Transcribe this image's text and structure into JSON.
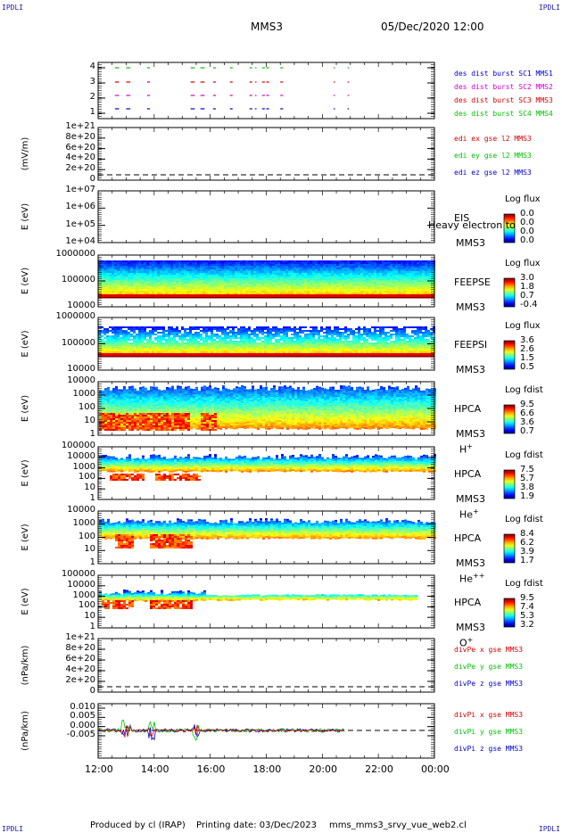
{
  "header": {
    "ipdli": "IPDLI",
    "spacecraft": "MMS3",
    "datetime": "05/Dec/2020 12:00"
  },
  "footer": {
    "produced": "Produced by cl (IRAP)",
    "printing": "Printing date: 03/Dec/2023",
    "script": "mms_mms3_srvy_vue_web2.cl"
  },
  "colors": {
    "blue": "#0000cc",
    "red": "#d40000",
    "green": "#00c000",
    "magenta": "#cc00cc"
  },
  "chart_data": {
    "type": "multi-panel-timeseries",
    "xaxis": {
      "ticks": [
        "12:00",
        "14:00",
        "16:00",
        "18:00",
        "20:00",
        "22:00",
        "00:00"
      ],
      "start": "12:00",
      "end": "00:00",
      "tick_interval_h": 2
    },
    "panels": [
      {
        "id": "burst",
        "type": "scatter",
        "yticks": [
          "4",
          "3",
          "2",
          "1"
        ],
        "ylim": [
          0.5,
          4.5
        ],
        "legend": [
          {
            "text": "des dist burst SC1 MMS1",
            "color": "#0000cc"
          },
          {
            "text": "des dist burst SC2 MMS2",
            "color": "#cc00cc"
          },
          {
            "text": "des dist burst SC3 MMS3",
            "color": "#d40000"
          },
          {
            "text": "des dist burst SC4 MMS4",
            "color": "#00c000"
          }
        ],
        "burst_intervals_h": [
          [
            0.6,
            0.75
          ],
          [
            1.0,
            1.15
          ],
          [
            1.75,
            1.85
          ],
          [
            3.3,
            3.45
          ],
          [
            3.65,
            3.8
          ],
          [
            4.1,
            4.2
          ],
          [
            4.7,
            4.8
          ],
          [
            5.4,
            5.5
          ],
          [
            5.6,
            5.65
          ],
          [
            5.85,
            5.95
          ],
          [
            6.0,
            6.1
          ],
          [
            6.5,
            6.6
          ],
          [
            8.4,
            8.45
          ],
          [
            8.9,
            8.95
          ]
        ]
      },
      {
        "id": "edi",
        "ylabel": "(mV/m)",
        "yticks": [
          "1e+21",
          "8e+20",
          "6e+20",
          "4e+20",
          "2e+20",
          "0"
        ],
        "legend": [
          {
            "text": "edi ex gse l2 MMS3",
            "color": "#d40000"
          },
          {
            "text": "edi ey gse l2 MMS3",
            "color": "#00c000"
          },
          {
            "text": "edi ez gse l2 MMS3",
            "color": "#0000cc"
          }
        ]
      },
      {
        "id": "eis",
        "ylabel": "E (eV)",
        "yticks": [
          "1e+07",
          "1e+06",
          "1e+05",
          "1e+04"
        ],
        "instrument": "EIS",
        "mms": "MMS3",
        "overlay": "Heavy electron to",
        "cb_title": "Log flux",
        "cb_values": [
          "0.0",
          "0.0",
          "0.0",
          "0.0"
        ]
      },
      {
        "id": "feepse",
        "ylabel": "E (eV)",
        "yticks": [
          "1000000",
          "100000",
          "10000"
        ],
        "instrument": "FEEPSE",
        "mms": "MMS3",
        "cb_title": "Log flux",
        "cb_values": [
          "3.0",
          "1.8",
          "0.7",
          "-0.4"
        ]
      },
      {
        "id": "feepsi",
        "ylabel": "E (eV)",
        "yticks": [
          "1000000",
          "100000",
          "10000"
        ],
        "instrument": "FEEPSI",
        "mms": "MMS3",
        "cb_title": "Log flux",
        "cb_values": [
          "3.6",
          "2.6",
          "1.5",
          "0.5"
        ]
      },
      {
        "id": "hpca_h",
        "ylabel": "E (eV)",
        "yticks": [
          "10000",
          "1000",
          "100",
          "10",
          "1"
        ],
        "instrument": "HPCA",
        "mms": "MMS3",
        "species": "H",
        "species_sup": "+",
        "cb_title": "Log fdist",
        "cb_values": [
          "9.5",
          "6.6",
          "3.6",
          "0.7"
        ]
      },
      {
        "id": "hpca_he",
        "ylabel": "E (eV)",
        "yticks": [
          "100000",
          "10000",
          "1000",
          "100",
          "10",
          "1"
        ],
        "instrument": "HPCA",
        "mms": "MMS3",
        "species": "He",
        "species_sup": "+",
        "cb_title": "Log fdist",
        "cb_values": [
          "7.5",
          "5.7",
          "3.8",
          "1.9"
        ]
      },
      {
        "id": "hpca_hepp",
        "ylabel": "E (eV)",
        "yticks": [
          "10000",
          "1000",
          "100",
          "10",
          "1"
        ],
        "instrument": "HPCA",
        "mms": "MMS3",
        "species": "He",
        "species_sup": "++",
        "cb_title": "Log fdist",
        "cb_values": [
          "8.4",
          "6.2",
          "3.9",
          "1.7"
        ]
      },
      {
        "id": "hpca_o",
        "ylabel": "E (eV)",
        "yticks": [
          "100000",
          "10000",
          "1000",
          "100",
          "10",
          "1"
        ],
        "instrument": "HPCA",
        "mms": "MMS3",
        "species": "O",
        "species_sup": "+",
        "cb_title": "Log fdist",
        "cb_values": [
          "9.5",
          "7.4",
          "5.3",
          "3.2"
        ]
      },
      {
        "id": "divpe",
        "ylabel": "(nPa/km)",
        "yticks": [
          "1e+21",
          "8e+20",
          "6e+20",
          "4e+20",
          "2e+20",
          "0"
        ],
        "legend": [
          {
            "text": "divPe x gse MMS3",
            "color": "#d40000"
          },
          {
            "text": "divPe y gse MMS3",
            "color": "#00c000"
          },
          {
            "text": "divPe z gse MMS3",
            "color": "#0000cc"
          }
        ]
      },
      {
        "id": "divpi",
        "ylabel": "(nPa/km)",
        "yticks": [
          "0.010",
          "0.005",
          "0.000",
          "-0.005"
        ],
        "ylim": [
          -0.009,
          0.011
        ],
        "legend": [
          {
            "text": "divPi x gse MMS3",
            "color": "#d40000"
          },
          {
            "text": "divPi y gse MMS3",
            "color": "#00c000"
          },
          {
            "text": "divPi z gse MMS3",
            "color": "#0000cc"
          }
        ]
      }
    ]
  }
}
